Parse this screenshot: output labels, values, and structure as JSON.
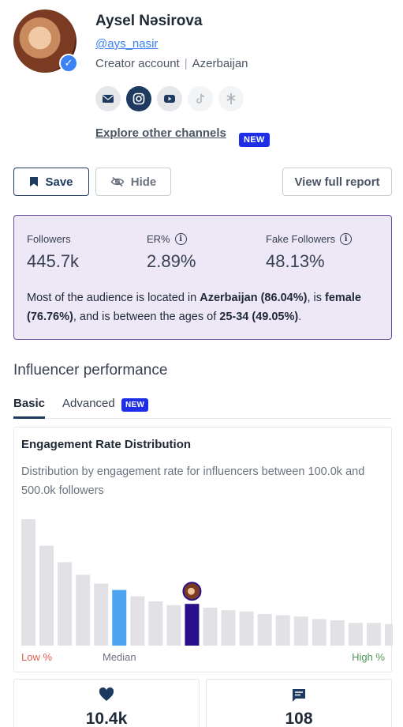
{
  "profile": {
    "name": "Aysel Nəsirova",
    "handle": "@ays_nasir",
    "account_type": "Creator account",
    "separator": "|",
    "country": "Azerbaijan",
    "verified_icon": "check-icon",
    "channels": [
      {
        "name": "email",
        "icon": "mail-icon"
      },
      {
        "name": "instagram",
        "icon": "instagram-icon"
      },
      {
        "name": "youtube",
        "icon": "youtube-icon"
      },
      {
        "name": "tiktok",
        "icon": "tiktok-icon"
      },
      {
        "name": "linktree",
        "icon": "linktree-icon"
      }
    ],
    "explore_label": "Explore other channels",
    "explore_badge": "NEW"
  },
  "actions": {
    "save_label": "Save",
    "hide_label": "Hide",
    "report_label": "View full report"
  },
  "stats": {
    "followers_label": "Followers",
    "followers_value": "445.7k",
    "er_label": "ER%",
    "er_value": "2.89%",
    "fake_label": "Fake Followers",
    "fake_value": "48.13%",
    "summary": {
      "p1": "Most of the audience is located in ",
      "country": "Azerbaijan (86.04%)",
      "p2": ", is ",
      "gender": "female (76.76%)",
      "p3": ", and is between the ages of ",
      "age": "25-34 (49.05%)",
      "p4": "."
    }
  },
  "performance": {
    "title": "Influencer performance",
    "tabs": {
      "basic": "Basic",
      "advanced": "Advanced",
      "advanced_badge": "NEW"
    }
  },
  "chart_data": {
    "type": "bar",
    "title": "Engagement Rate Distribution",
    "subtitle": "Distribution by engagement rate for influencers between 100.0k and 500.0k followers",
    "x_label_low": "Low %",
    "x_label_median": "Median",
    "x_label_high": "High %",
    "values": [
      100,
      79,
      66,
      56,
      49,
      44,
      39,
      35,
      32,
      33,
      30,
      28,
      27,
      25,
      24,
      23,
      21,
      20,
      18,
      18,
      17
    ],
    "median_index": 5,
    "influencer_index": 9,
    "colors": {
      "bar": "#e2e2e6",
      "median": "#4ea3f0",
      "influencer": "#2a0f8a"
    }
  },
  "metrics": {
    "likes_icon": "heart-icon",
    "likes_value": "10.4k",
    "comments_icon": "comment-icon",
    "comments_value": "108"
  }
}
